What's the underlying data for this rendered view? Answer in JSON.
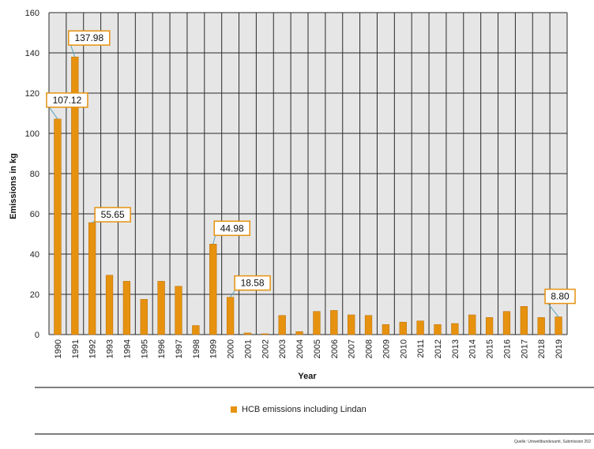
{
  "chart_data": {
    "type": "bar",
    "categories": [
      "1990",
      "1991",
      "1992",
      "1993",
      "1994",
      "1995",
      "1996",
      "1997",
      "1998",
      "1999",
      "2000",
      "2001",
      "2002",
      "2003",
      "2004",
      "2005",
      "2006",
      "2007",
      "2008",
      "2009",
      "2010",
      "2011",
      "2012",
      "2013",
      "2014",
      "2015",
      "2016",
      "2017",
      "2018",
      "2019"
    ],
    "series": [
      {
        "name": "HCB emissions including Lindan",
        "values": [
          107.12,
          137.98,
          55.65,
          29.5,
          26.5,
          17.5,
          26.5,
          24,
          4.5,
          44.98,
          18.58,
          0.8,
          0.4,
          9.5,
          1.5,
          11.5,
          12,
          9.8,
          9.5,
          5,
          6.2,
          6.8,
          5,
          5.5,
          9.8,
          8.5,
          11.5,
          14,
          8.5,
          8.8
        ]
      }
    ],
    "xlabel": "Year",
    "ylabel": "Emissions in kg",
    "ylim": [
      0,
      160
    ],
    "yticks": [
      0,
      20,
      40,
      60,
      80,
      100,
      120,
      140,
      160
    ],
    "grid": true,
    "legend_position": "bottom",
    "callouts": [
      {
        "category": "1990",
        "label": "107.12"
      },
      {
        "category": "1991",
        "label": "137.98"
      },
      {
        "category": "1992",
        "label": "55.65"
      },
      {
        "category": "1999",
        "label": "44.98"
      },
      {
        "category": "2000",
        "label": "18.58"
      },
      {
        "category": "2019",
        "label": "8.80"
      }
    ]
  },
  "source_text": "Quelle: Umweltbundesamt, Submission 202",
  "colors": {
    "bar": "#E6920F",
    "bar_edge": "#B86A00",
    "plot_bg": "#E6E6E6",
    "grid": "#2a2a2a",
    "callout_border": "#E6920F",
    "leader": "#5aa3b8"
  }
}
